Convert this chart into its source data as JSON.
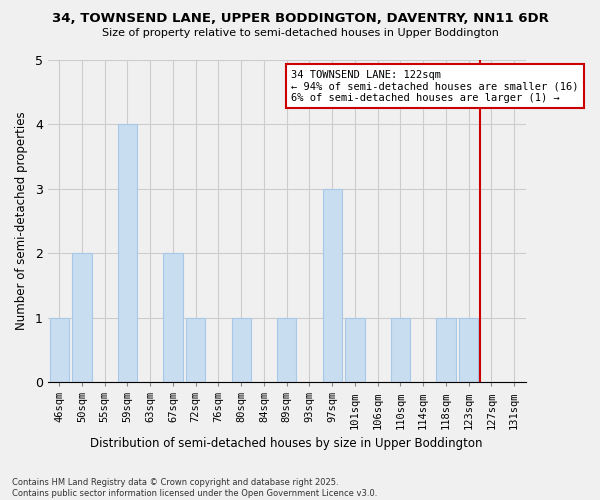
{
  "title1": "34, TOWNSEND LANE, UPPER BODDINGTON, DAVENTRY, NN11 6DR",
  "title2": "Size of property relative to semi-detached houses in Upper Boddington",
  "xlabel": "Distribution of semi-detached houses by size in Upper Boddington",
  "ylabel": "Number of semi-detached properties",
  "categories": [
    "46sqm",
    "50sqm",
    "55sqm",
    "59sqm",
    "63sqm",
    "67sqm",
    "72sqm",
    "76sqm",
    "80sqm",
    "84sqm",
    "89sqm",
    "93sqm",
    "97sqm",
    "101sqm",
    "106sqm",
    "110sqm",
    "114sqm",
    "118sqm",
    "123sqm",
    "127sqm",
    "131sqm"
  ],
  "values": [
    1,
    2,
    0,
    4,
    0,
    2,
    1,
    0,
    1,
    0,
    1,
    0,
    3,
    1,
    0,
    1,
    0,
    1,
    1,
    0
  ],
  "bar_color": "#c8ddf0",
  "bar_edge_color": "#a8c8e8",
  "vline_position": 18.5,
  "vline_color": "#cc0000",
  "annotation_title": "34 TOWNSEND LANE: 122sqm",
  "annotation_line1": "← 94% of semi-detached houses are smaller (16)",
  "annotation_line2": "6% of semi-detached houses are larger (1) →",
  "annotation_box_edgecolor": "#cc0000",
  "footer1": "Contains HM Land Registry data © Crown copyright and database right 2025.",
  "footer2": "Contains public sector information licensed under the Open Government Licence v3.0.",
  "ylim": [
    0,
    5
  ],
  "background_color": "#f0f0f0"
}
